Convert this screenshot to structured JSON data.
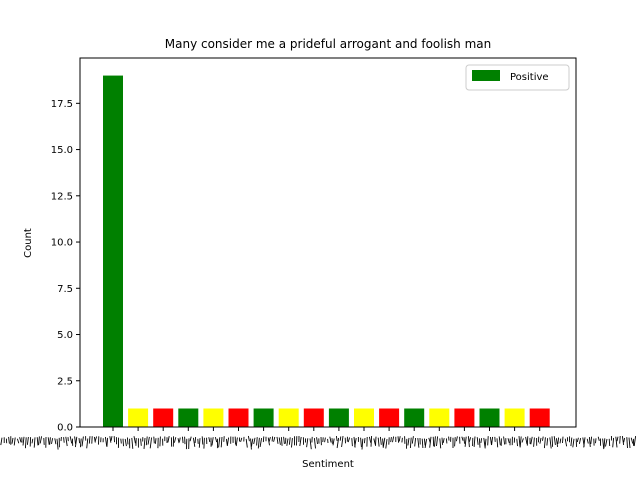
{
  "chart_data": {
    "type": "bar",
    "title": "Many consider me a prideful arrogant and foolish man",
    "xlabel": "Sentiment",
    "ylabel": "Count",
    "ylim": [
      0,
      19.95
    ],
    "yticks": [
      "0.0",
      "2.5",
      "5.0",
      "7.5",
      "10.0",
      "12.5",
      "15.0",
      "17.5"
    ],
    "legend": {
      "label": "Positive",
      "color": "#008000",
      "placement": "top-right"
    },
    "grid": false,
    "bars": [
      {
        "value": 19,
        "color": "#008000"
      },
      {
        "value": 1,
        "color": "#ffff00"
      },
      {
        "value": 1,
        "color": "#ff0000"
      },
      {
        "value": 1,
        "color": "#008000"
      },
      {
        "value": 1,
        "color": "#ffff00"
      },
      {
        "value": 1,
        "color": "#ff0000"
      },
      {
        "value": 1,
        "color": "#008000"
      },
      {
        "value": 1,
        "color": "#ffff00"
      },
      {
        "value": 1,
        "color": "#ff0000"
      },
      {
        "value": 1,
        "color": "#008000"
      },
      {
        "value": 1,
        "color": "#ffff00"
      },
      {
        "value": 1,
        "color": "#ff0000"
      },
      {
        "value": 1,
        "color": "#008000"
      },
      {
        "value": 1,
        "color": "#ffff00"
      },
      {
        "value": 1,
        "color": "#ff0000"
      },
      {
        "value": 1,
        "color": "#008000"
      },
      {
        "value": 1,
        "color": "#ffff00"
      },
      {
        "value": 1,
        "color": "#ff0000"
      }
    ]
  }
}
